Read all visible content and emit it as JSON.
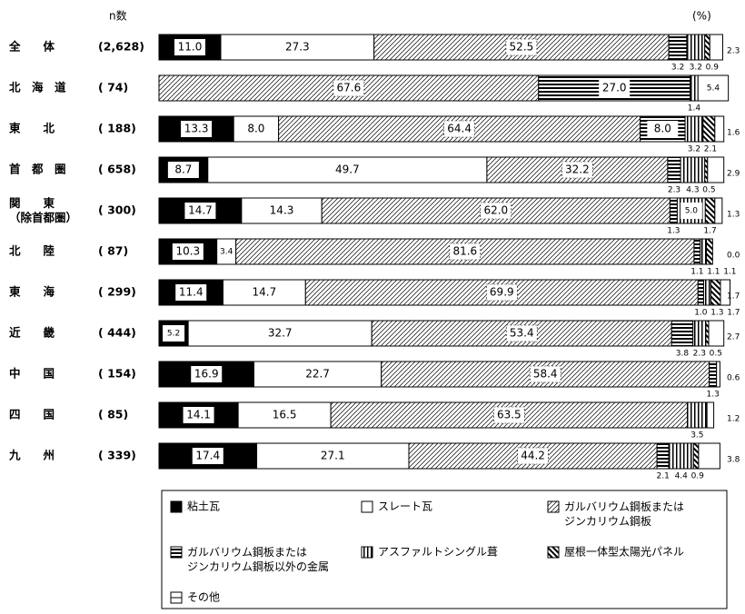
{
  "chart_data": {
    "type": "stacked-bar-h",
    "n_header": "n数",
    "unit_label": "(%)",
    "categories": [
      "全　　体",
      "北　海　道",
      "東　　北",
      "首　都　圏",
      "関　　東\n（除首都圏）",
      "北　　陸",
      "東　　海",
      "近　　畿",
      "中　　国",
      "四　　国",
      "九　　州"
    ],
    "n": [
      "(2,628)",
      "(   74)",
      "( 188)",
      "( 658)",
      "( 300)",
      "(   87)",
      "( 299)",
      "( 444)",
      "( 154)",
      "(   85)",
      "( 339)"
    ],
    "xlim": [
      0,
      100
    ],
    "series": [
      {
        "name": "粘土瓦",
        "color": "#000000",
        "values": [
          11.0,
          null,
          13.3,
          8.7,
          14.7,
          10.3,
          11.4,
          5.2,
          16.9,
          14.1,
          17.4
        ],
        "value_labels": [
          "11.0",
          null,
          "13.3",
          "8.7",
          "14.7",
          "10.3",
          "11.4",
          "5.2",
          "16.9",
          "14.1",
          "17.4"
        ]
      },
      {
        "name": "スレート瓦",
        "color": "#ffffff",
        "values": [
          27.3,
          null,
          8.0,
          49.7,
          14.3,
          3.4,
          14.7,
          32.7,
          22.7,
          16.5,
          27.1
        ],
        "value_labels": [
          "27.3",
          null,
          "8.0",
          "49.7",
          "14.3",
          "3.4",
          "14.7",
          "32.7",
          "22.7",
          "16.5",
          "27.1"
        ]
      },
      {
        "name": "ガルバリウム鋼板または\nジンカリウム鋼板",
        "color": "#000000",
        "values": [
          52.5,
          67.6,
          64.4,
          32.2,
          62.0,
          81.6,
          69.9,
          53.4,
          58.4,
          63.5,
          44.2
        ],
        "value_labels": [
          "52.5",
          "67.6",
          "64.4",
          "32.2",
          "62.0",
          "81.6",
          "69.9",
          "53.4",
          "58.4",
          "63.5",
          "44.2"
        ]
      },
      {
        "name": "ガルバリウム鋼板または\nジンカリウム鋼板以外の金属",
        "color": "#000000",
        "values": [
          3.2,
          27.0,
          8.0,
          2.3,
          1.3,
          1.1,
          1.0,
          3.8,
          1.3,
          null,
          2.1
        ],
        "value_labels": [
          "3.2",
          "27.0",
          "8.0",
          "2.3",
          "1.3",
          "1.1",
          "1.0",
          "3.8",
          "1.3",
          null,
          "2.1"
        ]
      },
      {
        "name": "アスファルトシングル葺",
        "color": "#000000",
        "values": [
          3.2,
          1.4,
          3.2,
          4.3,
          5.0,
          1.1,
          1.3,
          2.3,
          null,
          3.5,
          4.4
        ],
        "value_labels": [
          "3.2",
          "1.4",
          "3.2",
          "4.3",
          "5.0",
          "1.1",
          "1.3",
          "2.3",
          null,
          "3.5",
          "4.4"
        ]
      },
      {
        "name": "屋根一体型太陽光パネル",
        "color": "#000000",
        "values": [
          0.9,
          null,
          2.1,
          0.5,
          1.7,
          1.1,
          1.7,
          0.5,
          null,
          null,
          0.9
        ],
        "value_labels": [
          "0.9",
          null,
          "2.1",
          "0.5",
          "1.7",
          "1.1",
          "1.7",
          "0.5",
          null,
          null,
          "0.9"
        ]
      },
      {
        "name": "その他",
        "color": "#000000",
        "values": [
          2.3,
          5.4,
          1.6,
          2.9,
          1.3,
          0.0,
          1.7,
          2.7,
          0.6,
          1.2,
          3.8
        ],
        "value_labels": [
          "2.3",
          "5.4",
          "1.6",
          "2.9",
          "1.3",
          "0.0",
          "1.7",
          "2.7",
          "0.6",
          "1.2",
          "3.8"
        ]
      }
    ]
  }
}
